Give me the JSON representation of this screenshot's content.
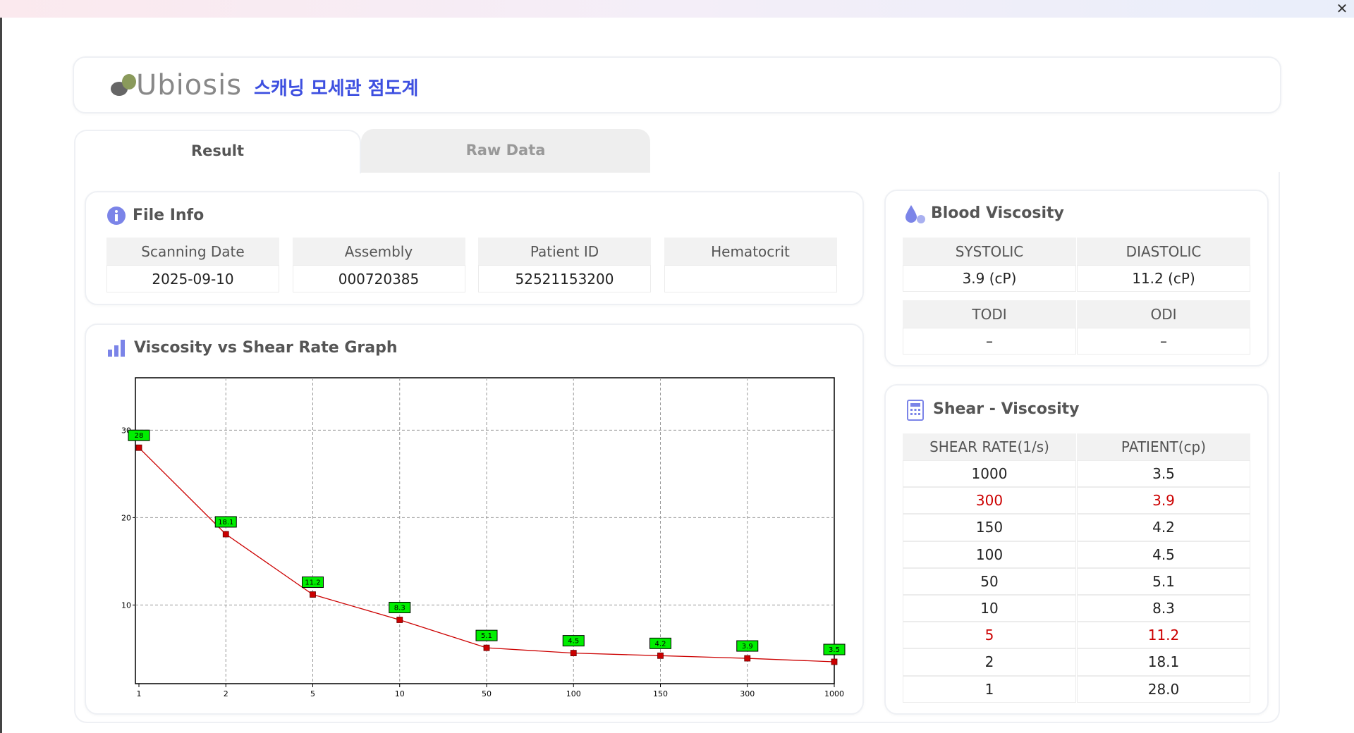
{
  "header": {
    "brand": "Ubiosis",
    "title": "스캐닝 모세관 점도계"
  },
  "tabs": [
    "Result",
    "Raw Data"
  ],
  "file_info": {
    "title": "File Info",
    "headers": [
      "Scanning Date",
      "Assembly",
      "Patient ID",
      "Hematocrit"
    ],
    "values": [
      "2025-09-10",
      "000720385",
      "52521153200"
    ]
  },
  "chart_data": {
    "type": "line",
    "title": "Viscosity vs Shear Rate Graph",
    "categories": [
      "1",
      "2",
      "5",
      "10",
      "50",
      "100",
      "150",
      "300",
      "1000"
    ],
    "values": [
      28,
      18.1,
      11.2,
      8.3,
      5.1,
      4.5,
      4.2,
      3.9,
      3.5
    ],
    "color": "#cc0000",
    "label_color": "#00ee00",
    "ylim": [
      1,
      36
    ],
    "yticks": [
      10,
      20,
      30
    ],
    "grid": true
  },
  "blood_viscosity": {
    "title": "Blood Viscosity",
    "tables": [
      {
        "headers": [
          "SYSTOLIC",
          "DIASTOLIC"
        ],
        "values": [
          "3.9 (cP)",
          "11.2 (cP)"
        ]
      },
      {
        "headers": [
          "TODI",
          "ODI"
        ],
        "values": [
          "–",
          "–"
        ]
      }
    ]
  },
  "shear_viscosity": {
    "title": "Shear - Viscosity",
    "headers": [
      "SHEAR RATE(1/s)",
      "PATIENT(cp)"
    ],
    "rows": [
      [
        "1000",
        "3.5"
      ],
      [
        "300",
        "3.9"
      ],
      [
        "150",
        "4.2"
      ],
      [
        "100",
        "4.5"
      ],
      [
        "50",
        "5.1"
      ],
      [
        "10",
        "8.3"
      ],
      [
        "5",
        "11.2"
      ],
      [
        "2",
        "18.1"
      ],
      [
        "1",
        "28.0"
      ]
    ],
    "highlighted_rows": [
      1,
      6
    ],
    "highlight_color": "#cc0000"
  }
}
